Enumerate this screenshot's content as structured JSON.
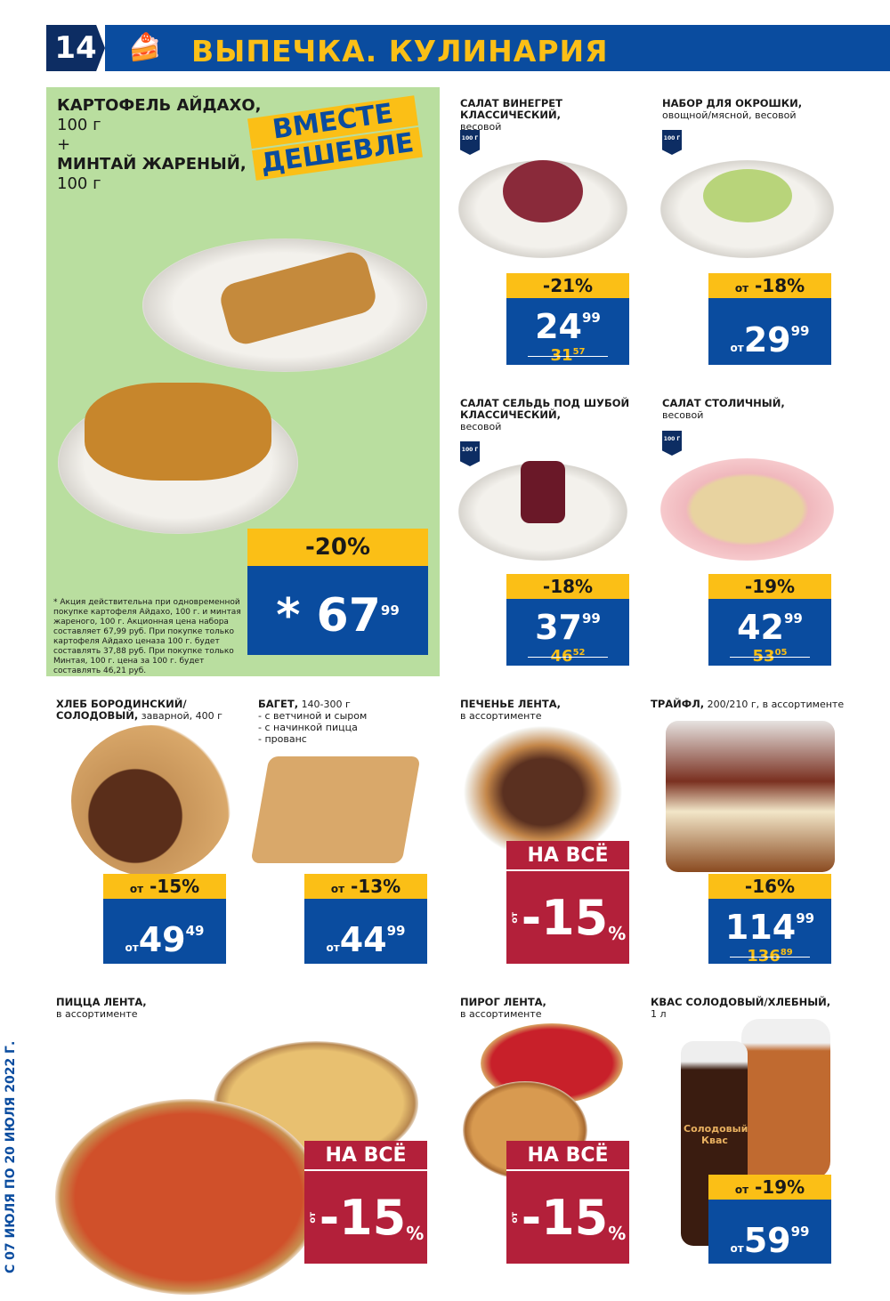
{
  "header": {
    "page_number": "14",
    "category_icon": "cake-icon",
    "title": "ВЫПЕЧКА. КУЛИНАРИЯ"
  },
  "colors": {
    "blue": "#0a4c9f",
    "yellow": "#fbbf16",
    "red": "#b3203a",
    "green": "#b9de9f"
  },
  "promo": {
    "line1": "КАРТОФЕЛЬ АЙДАХО,",
    "line2": "100 г",
    "plus": "+",
    "line3": "МИНТАЙ ЖАРЕНЫЙ,",
    "line4": "100 г",
    "stamp1": "ВМЕСТЕ",
    "stamp2": "ДЕШЕВЛЕ",
    "discount": "-20%",
    "star": "*",
    "price": "67",
    "cents": "99",
    "note": "* Акция действительна при одновременной покупке картофеля Айдахо, 100 г. и минтая жареного, 100 г. Акционная цена набора составляет 67,99 руб. При покупке только картофеля Айдахо ценаза 100 г. будет составлять 37,88 руб. При покупке только Минтая, 100 г. цена за 100 г. будет составлять 46,21 руб."
  },
  "products": [
    {
      "name": "САЛАТ ВИНЕГРЕТ КЛАССИЧЕСКИЙ,",
      "sub": "весовой",
      "weight": "100 Г",
      "discount": "-21%",
      "price": "24",
      "cents": "99",
      "old": "31",
      "old_cents": "57"
    },
    {
      "name": "НАБОР ДЛЯ ОКРОШКИ,",
      "sub": "овощной/мясной, весовой",
      "weight": "100 Г",
      "from": "от",
      "discount": "-18%",
      "price": "29",
      "cents": "99"
    },
    {
      "name": "САЛАТ СЕЛЬДЬ ПОД ШУБОЙ КЛАССИЧЕСКИЙ,",
      "sub": "весовой",
      "weight": "100 Г",
      "discount": "-18%",
      "price": "37",
      "cents": "99",
      "old": "46",
      "old_cents": "52"
    },
    {
      "name": "САЛАТ СТОЛИЧНЫЙ,",
      "sub": "весовой",
      "weight": "100 Г",
      "discount": "-19%",
      "price": "42",
      "cents": "99",
      "old": "53",
      "old_cents": "05"
    },
    {
      "name": "ХЛЕБ БОРОДИНСКИЙ/ СОЛОДОВЫЙ,",
      "sub": "заварной, 400 г",
      "from": "от",
      "discount": "-15%",
      "price": "49",
      "cents": "49"
    },
    {
      "name": "БАГЕТ,",
      "sub": "140-300 г",
      "lines": [
        "- с ветчиной и сыром",
        "- с начинкой пицца",
        "- прованс"
      ],
      "from": "от",
      "discount": "-13%",
      "price": "44",
      "cents": "99"
    },
    {
      "name": "ПЕЧЕНЬЕ ЛЕНТА,",
      "sub": "в ассортименте",
      "banner": "НА ВСЁ",
      "from": "от",
      "percent": "-15",
      "pct": "%"
    },
    {
      "name": "ТРАЙФЛ,",
      "sub": "200/210 г, в ассортименте",
      "discount": "-16%",
      "price": "114",
      "cents": "99",
      "old": "136",
      "old_cents": "89"
    },
    {
      "name": "ПИЦЦА ЛЕНТА,",
      "sub": "в ассортименте",
      "banner": "НА ВСЁ",
      "from": "от",
      "percent": "-15",
      "pct": "%"
    },
    {
      "name": "ПИРОГ ЛЕНТА,",
      "sub": "в ассортименте",
      "banner": "НА ВСЁ",
      "from": "от",
      "percent": "-15",
      "pct": "%"
    },
    {
      "name": "КВАС СОЛОДОВЫЙ/ХЛЕБНЫЙ,",
      "sub": "1 л",
      "label": "Солодовый Квас",
      "from": "от",
      "discount": "-19%",
      "price": "59",
      "cents": "99"
    }
  ],
  "dates": "С 07 ИЮЛЯ ПО 20 ИЮЛЯ 2022 Г."
}
